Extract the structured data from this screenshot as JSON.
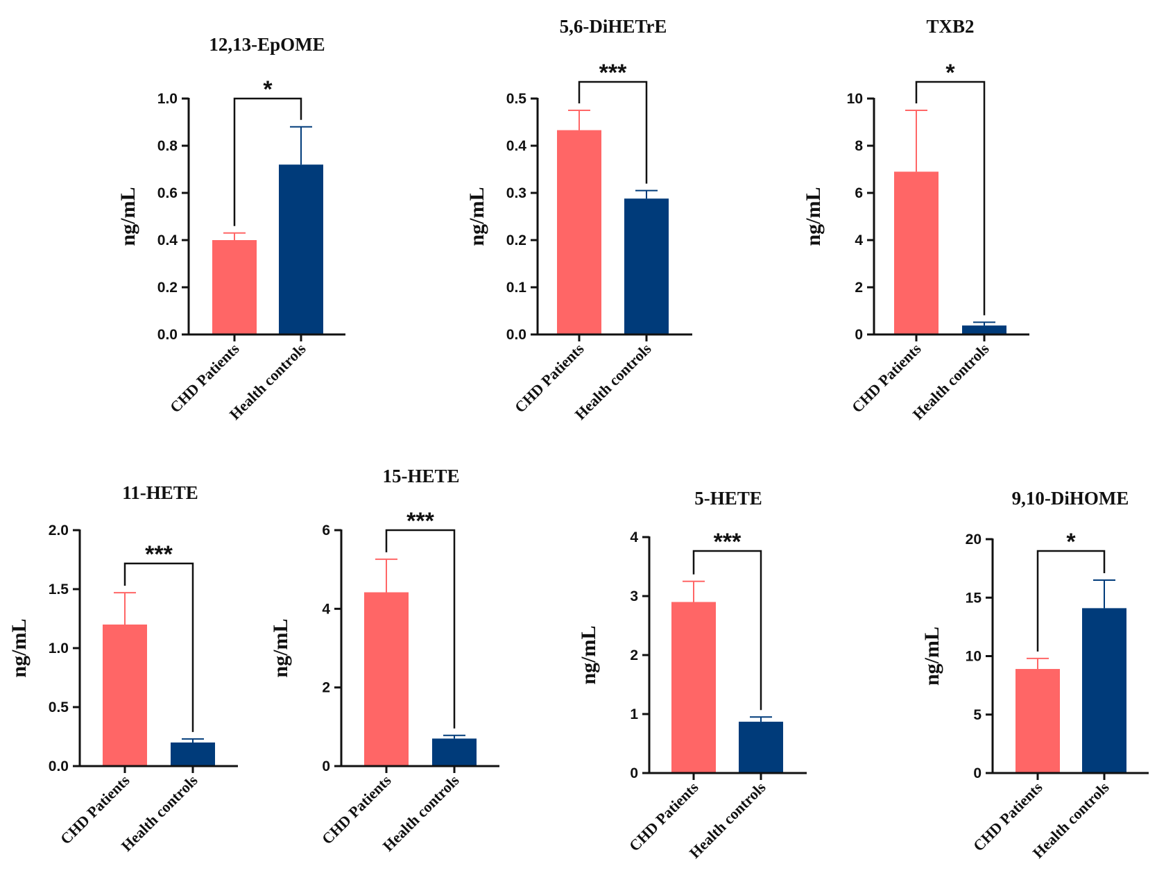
{
  "colors": {
    "patients": "#FF6666",
    "controls": "#003B7A",
    "axis": "#111111"
  },
  "chart_data": [
    {
      "type": "bar",
      "title": "12,13-EpOME",
      "ylabel": "ng/mL",
      "categories": [
        "CHD Patients",
        "Health controls"
      ],
      "values": [
        0.4,
        0.72
      ],
      "errors": [
        0.03,
        0.16
      ],
      "ylim": [
        0,
        1.0
      ],
      "yticks": [
        0.0,
        0.2,
        0.4,
        0.6,
        0.8,
        1.0
      ],
      "ytick_labels": [
        "0.0",
        "0.2",
        "0.4",
        "0.6",
        "0.8",
        "1.0"
      ],
      "significance": "*"
    },
    {
      "type": "bar",
      "title": "5,6-DiHETrE",
      "ylabel": "ng/mL",
      "categories": [
        "CHD Patients",
        "Health controls"
      ],
      "values": [
        0.433,
        0.288
      ],
      "errors": [
        0.042,
        0.017
      ],
      "ylim": [
        0,
        0.5
      ],
      "yticks": [
        0.0,
        0.1,
        0.2,
        0.3,
        0.4,
        0.5
      ],
      "ytick_labels": [
        "0.0",
        "0.1",
        "0.2",
        "0.3",
        "0.4",
        "0.5"
      ],
      "significance": "***"
    },
    {
      "type": "bar",
      "title": "TXB2",
      "ylabel": "ng/mL",
      "categories": [
        "CHD Patients",
        "Health controls"
      ],
      "values": [
        6.9,
        0.38
      ],
      "errors": [
        2.6,
        0.14
      ],
      "ylim": [
        0,
        10
      ],
      "yticks": [
        0,
        2,
        4,
        6,
        8,
        10
      ],
      "ytick_labels": [
        "0",
        "2",
        "4",
        "6",
        "8",
        "10"
      ],
      "significance": "*"
    },
    {
      "type": "bar",
      "title": "11-HETE",
      "ylabel": "ng/mL",
      "categories": [
        "CHD Patients",
        "Health controls"
      ],
      "values": [
        1.2,
        0.2
      ],
      "errors": [
        0.27,
        0.03
      ],
      "ylim": [
        0,
        2.0
      ],
      "yticks": [
        0.0,
        0.5,
        1.0,
        1.5,
        2.0
      ],
      "ytick_labels": [
        "0.0",
        "0.5",
        "1.0",
        "1.5",
        "2.0"
      ],
      "significance": "***"
    },
    {
      "type": "bar",
      "title": "15-HETE",
      "ylabel": "ng/mL",
      "categories": [
        "CHD Patients",
        "Health controls"
      ],
      "values": [
        4.42,
        0.7
      ],
      "errors": [
        0.84,
        0.08
      ],
      "ylim": [
        0,
        6
      ],
      "yticks": [
        0,
        2,
        4,
        6
      ],
      "ytick_labels": [
        "0",
        "2",
        "4",
        "6"
      ],
      "significance": "***"
    },
    {
      "type": "bar",
      "title": "5-HETE",
      "ylabel": "ng/mL",
      "categories": [
        "CHD Patients",
        "Health controls"
      ],
      "values": [
        2.9,
        0.87
      ],
      "errors": [
        0.35,
        0.08
      ],
      "ylim": [
        0,
        4
      ],
      "yticks": [
        0,
        1,
        2,
        3,
        4
      ],
      "ytick_labels": [
        "0",
        "1",
        "2",
        "3",
        "4"
      ],
      "significance": "***"
    },
    {
      "type": "bar",
      "title": "9,10-DiHOME",
      "ylabel": "ng/mL",
      "categories": [
        "CHD Patients",
        "Health controls"
      ],
      "values": [
        8.9,
        14.1
      ],
      "errors": [
        0.9,
        2.4
      ],
      "ylim": [
        0,
        20
      ],
      "yticks": [
        0,
        5,
        10,
        15,
        20
      ],
      "ytick_labels": [
        "0",
        "5",
        "10",
        "15",
        "20"
      ],
      "significance": "*"
    }
  ]
}
